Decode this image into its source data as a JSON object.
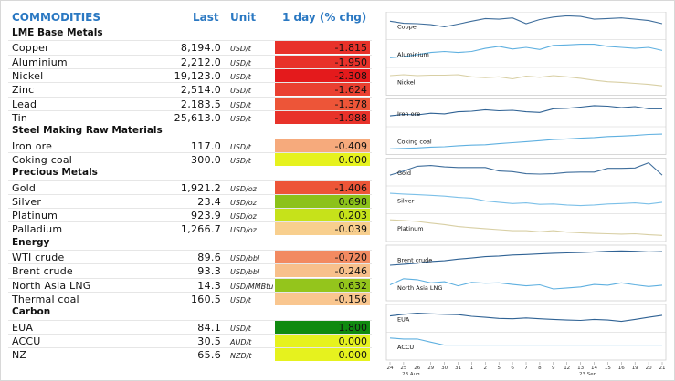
{
  "header": {
    "title": "COMMODITIES",
    "last": "Last",
    "unit": "Unit",
    "change": "1 day (% chg)"
  },
  "sections": [
    {
      "title": "LME Base Metals",
      "rows": [
        {
          "name": "Copper",
          "last": "8,194.0",
          "unit": "USD/t",
          "change": "-1.815",
          "color": "#e8322a"
        },
        {
          "name": "Aluminium",
          "last": "2,212.0",
          "unit": "USD/t",
          "change": "-1.950",
          "color": "#e8322a"
        },
        {
          "name": "Nickel",
          "last": "19,123.0",
          "unit": "USD/t",
          "change": "-2.308",
          "color": "#e41a1c"
        },
        {
          "name": "Zinc",
          "last": "2,514.0",
          "unit": "USD/t",
          "change": "-1.624",
          "color": "#ea4031"
        },
        {
          "name": "Lead",
          "last": "2,183.5",
          "unit": "USD/t",
          "change": "-1.378",
          "color": "#ed5538"
        },
        {
          "name": "Tin",
          "last": "25,613.0",
          "unit": "USD/t",
          "change": "-1.988",
          "color": "#e8322a"
        }
      ]
    },
    {
      "title": "Steel Making Raw Materials",
      "rows": [
        {
          "name": "Iron ore",
          "last": "117.0",
          "unit": "USD/t",
          "change": "-0.409",
          "color": "#f6aa7c"
        },
        {
          "name": "Coking coal",
          "last": "300.0",
          "unit": "USD/t",
          "change": "0.000",
          "color": "#e6f21e"
        }
      ]
    },
    {
      "title": "Precious Metals",
      "rows": [
        {
          "name": "Gold",
          "last": "1,921.2",
          "unit": "USD/oz",
          "change": "-1.406",
          "color": "#ed5538"
        },
        {
          "name": "Silver",
          "last": "23.4",
          "unit": "USD/oz",
          "change": "0.698",
          "color": "#8cc21a"
        },
        {
          "name": "Platinum",
          "last": "923.9",
          "unit": "USD/oz",
          "change": "0.203",
          "color": "#c6e21a"
        },
        {
          "name": "Palladium",
          "last": "1,266.7",
          "unit": "USD/oz",
          "change": "-0.039",
          "color": "#f8cf8e"
        }
      ]
    },
    {
      "title": "Energy",
      "rows": [
        {
          "name": "WTI crude",
          "last": "89.6",
          "unit": "USD/bbl",
          "change": "-0.720",
          "color": "#f28a61"
        },
        {
          "name": "Brent crude",
          "last": "93.3",
          "unit": "USD/bbl",
          "change": "-0.246",
          "color": "#f8c08c"
        },
        {
          "name": "North Asia LNG",
          "last": "14.3",
          "unit": "USD/MMBtu",
          "change": "0.632",
          "color": "#94c51c"
        },
        {
          "name": "Thermal coal",
          "last": "160.5",
          "unit": "USD/t",
          "change": "-0.156",
          "color": "#f9c68f"
        }
      ]
    },
    {
      "title": "Carbon",
      "rows": [
        {
          "name": "EUA",
          "last": "84.1",
          "unit": "USD/t",
          "change": "1.800",
          "color": "#108a10"
        },
        {
          "name": "ACCU",
          "last": "30.5",
          "unit": "AUD/t",
          "change": "0.000",
          "color": "#e6f21e"
        },
        {
          "name": "NZ",
          "last": "65.6",
          "unit": "NZD/t",
          "change": "0.000",
          "color": "#e6f21e"
        }
      ]
    }
  ],
  "chart_data": {
    "type": "line",
    "title": "",
    "x": [
      "24",
      "25",
      "26",
      "29",
      "30",
      "31",
      "1",
      "2",
      "5",
      "6",
      "7",
      "8",
      "9",
      "12",
      "13",
      "14",
      "15",
      "16",
      "19",
      "20",
      "21"
    ],
    "month_labels": [
      "23 Aug",
      "23 Sep"
    ],
    "series": [
      {
        "name": "Copper",
        "group": 0,
        "color": "#3f6e9c",
        "values": [
          0.72,
          0.62,
          0.6,
          0.55,
          0.45,
          0.58,
          0.72,
          0.85,
          0.82,
          0.88,
          0.6,
          0.8,
          0.92,
          0.98,
          0.95,
          0.82,
          0.85,
          0.88,
          0.82,
          0.75,
          0.6
        ]
      },
      {
        "name": "Aluminium",
        "group": 1,
        "color": "#5fb0e0",
        "values": [
          0.3,
          0.35,
          0.45,
          0.55,
          0.6,
          0.55,
          0.6,
          0.75,
          0.85,
          0.72,
          0.8,
          0.7,
          0.9,
          0.92,
          0.95,
          0.95,
          0.85,
          0.8,
          0.75,
          0.8,
          0.65
        ]
      },
      {
        "name": "Nickel",
        "group": 2,
        "color": "#d8cfa4",
        "values": [
          0.78,
          0.82,
          0.78,
          0.8,
          0.8,
          0.82,
          0.72,
          0.68,
          0.72,
          0.62,
          0.75,
          0.7,
          0.78,
          0.72,
          0.65,
          0.55,
          0.48,
          0.45,
          0.4,
          0.35,
          0.28
        ]
      },
      {
        "name": "Iron ore",
        "group": 3,
        "color": "#2f6294",
        "values": [
          0.35,
          0.42,
          0.4,
          0.48,
          0.45,
          0.55,
          0.58,
          0.65,
          0.6,
          0.62,
          0.55,
          0.52,
          0.7,
          0.72,
          0.78,
          0.85,
          0.82,
          0.75,
          0.8,
          0.7,
          0.7
        ]
      },
      {
        "name": "Coking coal",
        "group": 4,
        "color": "#5fb0e0",
        "values": [
          0.1,
          0.12,
          0.14,
          0.18,
          0.2,
          0.25,
          0.28,
          0.3,
          0.35,
          0.4,
          0.45,
          0.5,
          0.55,
          0.58,
          0.62,
          0.65,
          0.7,
          0.72,
          0.75,
          0.8,
          0.82
        ]
      },
      {
        "name": "Gold",
        "group": 5,
        "color": "#3f6e9c",
        "values": [
          0.35,
          0.55,
          0.78,
          0.82,
          0.75,
          0.72,
          0.72,
          0.72,
          0.55,
          0.52,
          0.42,
          0.4,
          0.42,
          0.48,
          0.5,
          0.5,
          0.68,
          0.68,
          0.7,
          0.95,
          0.35
        ]
      },
      {
        "name": "Silver",
        "group": 6,
        "color": "#7cc0e8",
        "values": [
          0.82,
          0.78,
          0.75,
          0.72,
          0.68,
          0.62,
          0.58,
          0.45,
          0.38,
          0.32,
          0.35,
          0.28,
          0.3,
          0.25,
          0.22,
          0.25,
          0.3,
          0.32,
          0.35,
          0.3,
          0.38
        ]
      },
      {
        "name": "Platinum",
        "group": 7,
        "color": "#d8cfa4",
        "values": [
          0.88,
          0.85,
          0.8,
          0.72,
          0.65,
          0.55,
          0.5,
          0.45,
          0.4,
          0.35,
          0.35,
          0.3,
          0.35,
          0.28,
          0.25,
          0.22,
          0.2,
          0.18,
          0.2,
          0.15,
          0.12
        ]
      },
      {
        "name": "Brent crude",
        "group": 8,
        "color": "#2f6294",
        "values": [
          0.2,
          0.25,
          0.3,
          0.38,
          0.42,
          0.5,
          0.55,
          0.62,
          0.65,
          0.7,
          0.72,
          0.75,
          0.78,
          0.8,
          0.82,
          0.85,
          0.88,
          0.9,
          0.88,
          0.85,
          0.86
        ]
      },
      {
        "name": "North Asia LNG",
        "group": 9,
        "color": "#5fb0e0",
        "values": [
          0.6,
          0.9,
          0.85,
          0.7,
          0.75,
          0.55,
          0.72,
          0.68,
          0.7,
          0.62,
          0.55,
          0.6,
          0.4,
          0.45,
          0.5,
          0.62,
          0.58,
          0.7,
          0.6,
          0.52,
          0.58
        ]
      },
      {
        "name": "EUA",
        "group": 10,
        "color": "#2f6294",
        "values": [
          0.62,
          0.7,
          0.75,
          0.72,
          0.7,
          0.68,
          0.6,
          0.55,
          0.5,
          0.48,
          0.52,
          0.48,
          0.45,
          0.42,
          0.4,
          0.45,
          0.42,
          0.35,
          0.45,
          0.55,
          0.65
        ]
      },
      {
        "name": "ACCU",
        "group": 11,
        "color": "#5fb0e0",
        "values": [
          0.9,
          0.85,
          0.85,
          0.7,
          0.55,
          0.55,
          0.55,
          0.55,
          0.55,
          0.55,
          0.55,
          0.55,
          0.55,
          0.55,
          0.55,
          0.55,
          0.55,
          0.55,
          0.55,
          0.55,
          0.55
        ]
      }
    ],
    "panel_groups": [
      3,
      2,
      3,
      2,
      2
    ]
  }
}
